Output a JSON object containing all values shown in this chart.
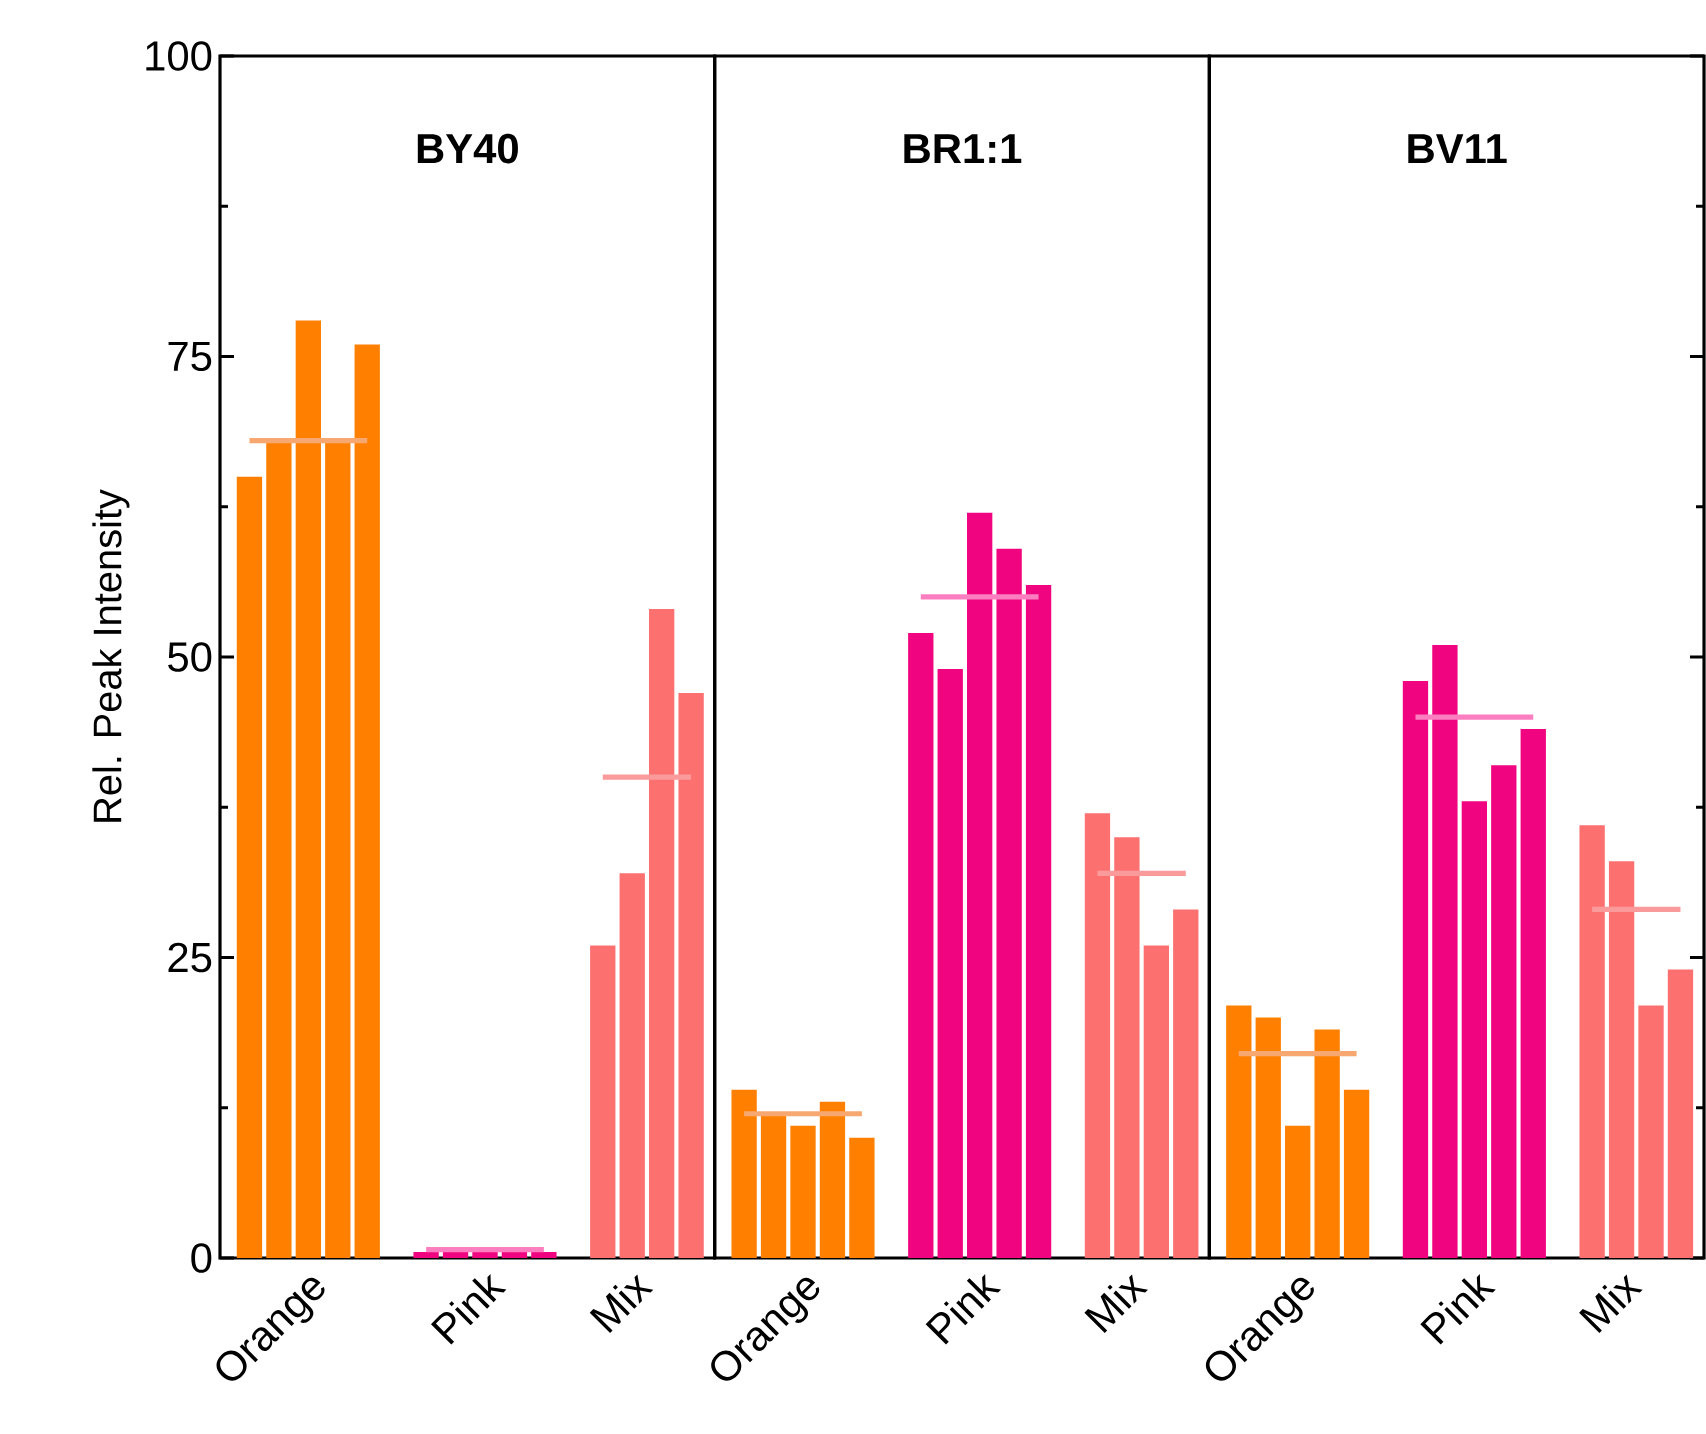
{
  "chart_data": [
    {
      "type": "bar",
      "title": "BY40",
      "ylabel": "Rel. Peak Intensity",
      "categories": [
        null,
        null,
        "Orange",
        null,
        null,
        null,
        null,
        null,
        "Pink",
        null,
        null,
        null,
        null,
        "Mix",
        null,
        null
      ],
      "ylim": [
        0,
        100
      ],
      "yticks": [
        0,
        25,
        50,
        75,
        100
      ],
      "series": [
        {
          "colors": [
            "#ff8000",
            "#ff8000",
            "#ff8000",
            "#ff8000",
            "#ff8000",
            null,
            "#f0047f",
            "#f0047f",
            "#f0047f",
            "#f0047f",
            "#f0047f",
            null,
            "#fd7070",
            "#fd7070",
            "#fd7070",
            "#fd7070"
          ],
          "values": [
            65,
            68,
            78,
            68,
            76,
            null,
            0.5,
            0.5,
            0.5,
            0.5,
            0.5,
            null,
            26,
            32,
            54,
            47
          ]
        },
        {
          "type": "line",
          "color": "#f7a870",
          "values": [
            68,
            68,
            68,
            68,
            68,
            null,
            null,
            null,
            null,
            null,
            null,
            null,
            null,
            null,
            null,
            null
          ]
        },
        {
          "type": "line",
          "color": "#fb7fc0",
          "values": [
            null,
            null,
            null,
            null,
            null,
            null,
            0.7,
            0.7,
            0.7,
            0.7,
            0.7,
            null,
            null,
            null,
            null,
            null
          ]
        },
        {
          "type": "line",
          "color": "#fb9a9a",
          "values": [
            null,
            null,
            null,
            null,
            null,
            null,
            null,
            null,
            null,
            null,
            null,
            null,
            40,
            40,
            40,
            40
          ]
        }
      ]
    },
    {
      "type": "bar",
      "title": "BR1:1",
      "categories": [
        null,
        null,
        "Orange",
        null,
        null,
        null,
        null,
        null,
        "Pink",
        null,
        null,
        null,
        null,
        "Mix",
        null,
        null
      ],
      "ylim": [
        0,
        100
      ],
      "yticks": [
        0,
        25,
        50,
        75,
        100
      ],
      "tick_labels": "x",
      "series": [
        {
          "colors": [
            "#ff8000",
            "#ff8000",
            "#ff8000",
            "#ff8000",
            "#ff8000",
            null,
            "#f0047f",
            "#f0047f",
            "#f0047f",
            "#f0047f",
            "#f0047f",
            null,
            "#fd7070",
            "#fd7070",
            "#fd7070",
            "#fd7070"
          ],
          "values": [
            14,
            12,
            11,
            13,
            10,
            null,
            52,
            49,
            62,
            59,
            56,
            null,
            37,
            35,
            26,
            29
          ]
        },
        {
          "type": "line",
          "color": "#f7a870",
          "values": [
            12,
            12,
            12,
            12,
            12,
            null,
            null,
            null,
            null,
            null,
            null,
            null,
            null,
            null,
            null,
            null
          ]
        },
        {
          "type": "line",
          "color": "#fb7fc0",
          "values": [
            null,
            null,
            null,
            null,
            null,
            null,
            55,
            55,
            55,
            55,
            55,
            null,
            null,
            null,
            null,
            null
          ]
        },
        {
          "type": "line",
          "color": "#fb9a9a",
          "values": [
            null,
            null,
            null,
            null,
            null,
            null,
            null,
            null,
            null,
            null,
            null,
            null,
            32,
            32,
            32,
            32
          ]
        }
      ]
    },
    {
      "type": "bar",
      "title": "BV11",
      "categories": [
        null,
        null,
        "Orange",
        null,
        null,
        null,
        null,
        null,
        "Pink",
        null,
        null,
        null,
        null,
        "Mix",
        null,
        null
      ],
      "ylim": [
        0,
        100
      ],
      "yticks": [
        0,
        25,
        50,
        75,
        100
      ],
      "tick_labels": "x",
      "series": [
        {
          "colors": [
            "#ff8000",
            "#ff8000",
            "#ff8000",
            "#ff8000",
            "#ff8000",
            null,
            "#f0047f",
            "#f0047f",
            "#f0047f",
            "#f0047f",
            "#f0047f",
            null,
            "#fd7070",
            "#fd7070",
            "#fd7070",
            "#fd7070"
          ],
          "values": [
            21,
            20,
            11,
            19,
            14,
            null,
            48,
            51,
            38,
            41,
            44,
            null,
            36,
            33,
            21,
            24
          ]
        },
        {
          "type": "line",
          "color": "#f7a870",
          "values": [
            17,
            17,
            17,
            17,
            17,
            null,
            null,
            null,
            null,
            null,
            null,
            null,
            null,
            null,
            null,
            null
          ]
        },
        {
          "type": "line",
          "color": "#fb7fc0",
          "values": [
            null,
            null,
            null,
            null,
            null,
            null,
            45,
            45,
            45,
            45,
            45,
            null,
            null,
            null,
            null,
            null
          ]
        },
        {
          "type": "line",
          "color": "#fb9a9a",
          "values": [
            null,
            null,
            null,
            null,
            null,
            null,
            null,
            null,
            null,
            null,
            null,
            null,
            29,
            29,
            29,
            29
          ]
        }
      ]
    }
  ]
}
